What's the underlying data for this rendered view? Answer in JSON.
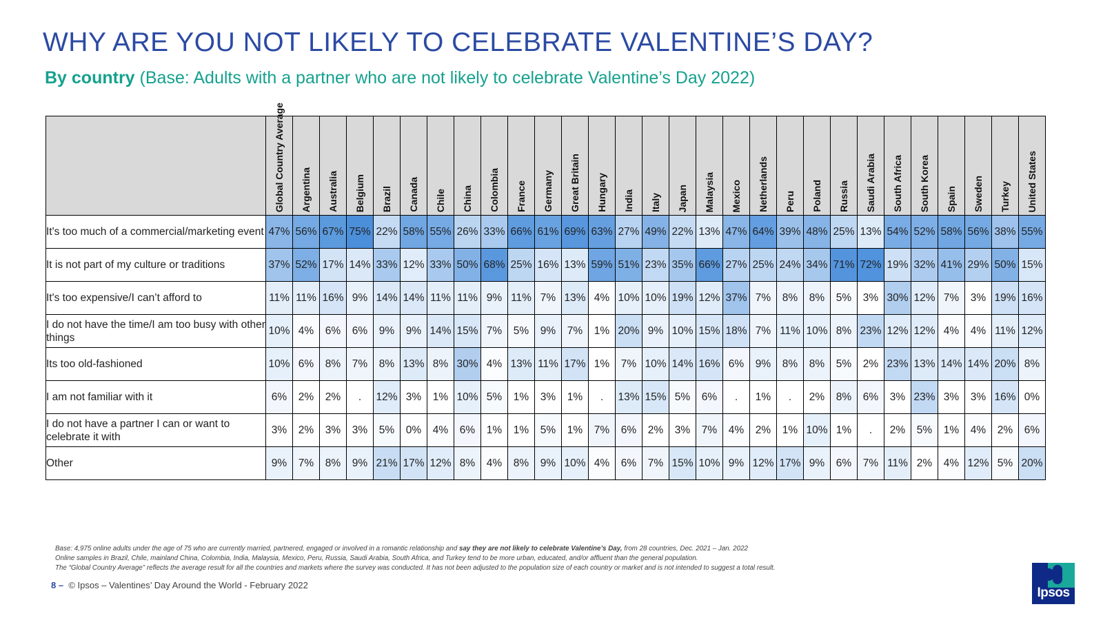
{
  "slide": {
    "title": "WHY ARE YOU NOT LIKELY TO CELEBRATE VALENTINE’S DAY?",
    "subtitle_bold": "By country",
    "subtitle_rest": " (Base: Adults with a partner who are not likely to celebrate Valentine’s Day 2022)"
  },
  "colors": {
    "title": "#2b4aa3",
    "subtitle": "#15a18e",
    "header_fill": "#d9d9d9",
    "heat_low": "#ffffff",
    "heat_high": "#4b8fdb"
  },
  "chart_data": {
    "type": "table",
    "columns": [
      "Global Country Average",
      "Argentina",
      "Australia",
      "Belgium",
      "Brazil",
      "Canada",
      "Chile",
      "China",
      "Colombia",
      "France",
      "Germany",
      "Great Britain",
      "Hungary",
      "India",
      "Italy",
      "Japan",
      "Malaysia",
      "Mexico",
      "Netherlands",
      "Peru",
      "Poland",
      "Russia",
      "Saudi Arabia",
      "South Africa",
      "South Korea",
      "Spain",
      "Sweden",
      "Turkey",
      "United States"
    ],
    "rows": [
      {
        "label": "It's too much of a commercial/marketing event",
        "values": [
          "47%",
          "56%",
          "67%",
          "75%",
          "22%",
          "58%",
          "55%",
          "26%",
          "33%",
          "66%",
          "61%",
          "69%",
          "63%",
          "27%",
          "49%",
          "22%",
          "13%",
          "47%",
          "64%",
          "39%",
          "48%",
          "25%",
          "13%",
          "54%",
          "52%",
          "58%",
          "56%",
          "38%",
          "55%"
        ]
      },
      {
        "label": "It is not part of my culture or traditions",
        "values": [
          "37%",
          "52%",
          "17%",
          "14%",
          "33%",
          "12%",
          "33%",
          "50%",
          "68%",
          "25%",
          "16%",
          "13%",
          "59%",
          "51%",
          "23%",
          "35%",
          "66%",
          "27%",
          "25%",
          "24%",
          "34%",
          "71%",
          "72%",
          "19%",
          "32%",
          "41%",
          "29%",
          "50%",
          "15%"
        ]
      },
      {
        "label": "It's too expensive/I can’t afford to",
        "values": [
          "11%",
          "11%",
          "16%",
          "9%",
          "14%",
          "14%",
          "11%",
          "11%",
          "9%",
          "11%",
          "7%",
          "13%",
          "4%",
          "10%",
          "10%",
          "19%",
          "12%",
          "37%",
          "7%",
          "8%",
          "8%",
          "5%",
          "3%",
          "30%",
          "12%",
          "7%",
          "3%",
          "19%",
          "16%"
        ]
      },
      {
        "label": "I do not have the time/I am too busy with other things",
        "values": [
          "10%",
          "4%",
          "6%",
          "6%",
          "9%",
          "9%",
          "14%",
          "15%",
          "7%",
          "5%",
          "9%",
          "7%",
          "1%",
          "20%",
          "9%",
          "10%",
          "15%",
          "18%",
          "7%",
          "11%",
          "10%",
          "8%",
          "23%",
          "12%",
          "12%",
          "4%",
          "4%",
          "11%",
          "12%"
        ]
      },
      {
        "label": "Its too old-fashioned",
        "values": [
          "10%",
          "6%",
          "8%",
          "7%",
          "8%",
          "13%",
          "8%",
          "30%",
          "4%",
          "13%",
          "11%",
          "17%",
          "1%",
          "7%",
          "10%",
          "14%",
          "16%",
          "6%",
          "9%",
          "8%",
          "8%",
          "5%",
          "2%",
          "23%",
          "13%",
          "14%",
          "14%",
          "20%",
          "8%"
        ]
      },
      {
        "label": "I am not familiar with it",
        "values": [
          "6%",
          "2%",
          "2%",
          ".",
          "12%",
          "3%",
          "1%",
          "10%",
          "5%",
          "1%",
          "3%",
          "1%",
          ".",
          "13%",
          "15%",
          "5%",
          "6%",
          ".",
          "1%",
          ".",
          "2%",
          "8%",
          "6%",
          "3%",
          "23%",
          "3%",
          "3%",
          "16%",
          "0%"
        ]
      },
      {
        "label": "I do not have a partner I can or want to celebrate it with",
        "values": [
          "3%",
          "2%",
          "3%",
          "3%",
          "5%",
          "0%",
          "4%",
          "6%",
          "1%",
          "1%",
          "5%",
          "1%",
          "7%",
          "6%",
          "2%",
          "3%",
          "7%",
          "4%",
          "2%",
          "1%",
          "10%",
          "1%",
          ".",
          "2%",
          "5%",
          "1%",
          "4%",
          "2%",
          "6%"
        ]
      },
      {
        "label": "Other",
        "values": [
          "9%",
          "7%",
          "8%",
          "9%",
          "21%",
          "17%",
          "12%",
          "8%",
          "4%",
          "8%",
          "9%",
          "10%",
          "4%",
          "6%",
          "7%",
          "15%",
          "10%",
          "9%",
          "12%",
          "17%",
          "9%",
          "6%",
          "7%",
          "11%",
          "2%",
          "4%",
          "12%",
          "5%",
          "20%"
        ]
      }
    ]
  },
  "footnote": {
    "line1_pre": "Base: 4,975 online adults under the age of 75 who are currently married, partnered, engaged or involved in a romantic relationship and ",
    "line1_bold": "say they are not likely to celebrate Valentine’s Day,",
    "line1_post": " from 28 countries, Dec. 2021 – Jan. 2022",
    "line2": "Online samples in Brazil, Chile, mainland China, Colombia, India, Malaysia, Mexico, Peru, Russia, Saudi Arabia, South Africa, and Turkey tend to be more urban, educated, and/or affluent than the general population.",
    "line3": "The “Global Country Average” reflects the average result for all the countries and markets where the survey was conducted. It has not been adjusted to the population size of each country or market and is not intended to suggest a total result."
  },
  "footer": {
    "page": "8 –",
    "text": "© Ipsos – Valentines’ Day Around the World - February 2022"
  },
  "logo": {
    "text": "Ipsos"
  }
}
